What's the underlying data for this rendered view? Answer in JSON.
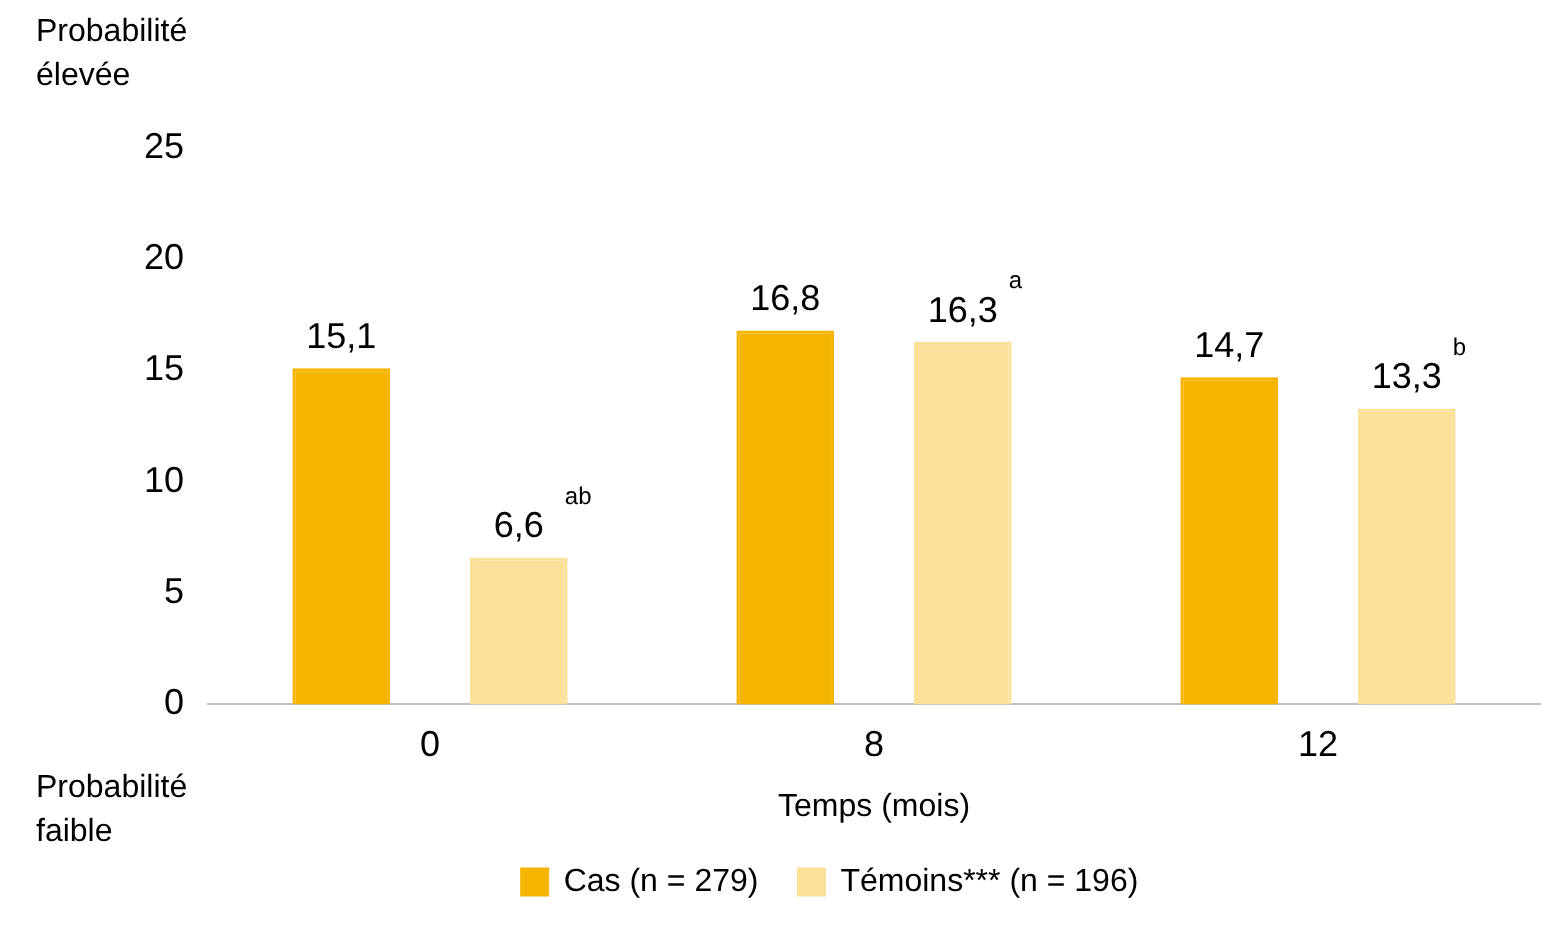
{
  "chart_data": {
    "type": "bar",
    "xlabel": "Temps (mois)",
    "categories": [
      "0",
      "8",
      "12"
    ],
    "series": [
      {
        "name": "Cas (n = 279)",
        "color": "#f5b400",
        "values": [
          15.1,
          16.8,
          14.7
        ],
        "value_labels": [
          "15,1",
          "16,8",
          "14,7"
        ]
      },
      {
        "name": "Témoins*** (n = 196)",
        "color": "#fbe099",
        "values": [
          6.6,
          16.3,
          13.3
        ],
        "value_labels": [
          "6,6",
          "16,3",
          "13,3"
        ]
      }
    ],
    "ylim": [
      0,
      25
    ],
    "yticks": [
      0,
      5,
      10,
      15,
      20,
      25
    ],
    "grid": false,
    "legend": "bottom",
    "annotations": [
      "Probabilité élevée",
      "Probabilité faible",
      "ab",
      "a",
      "b"
    ]
  }
}
